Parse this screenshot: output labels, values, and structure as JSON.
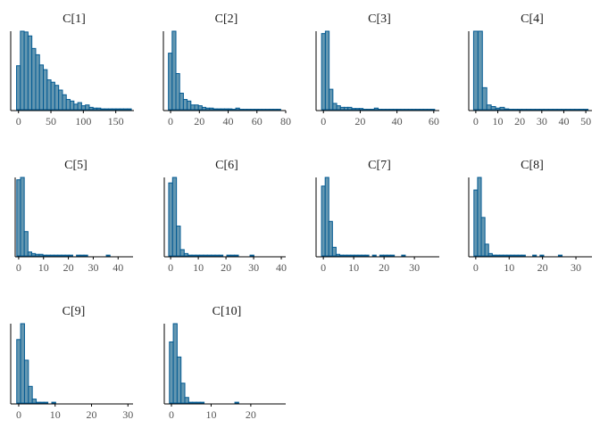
{
  "chart_data": [
    {
      "type": "bar",
      "title": "C[1]",
      "xlim": [
        -12,
        178
      ],
      "ticks": [
        0,
        50,
        100,
        150
      ],
      "bin_start": -3,
      "bin_width": 5.9,
      "values": [
        56,
        100,
        99,
        94,
        78,
        70,
        57,
        51,
        38,
        35,
        31,
        25,
        19,
        13,
        11,
        7,
        9,
        5,
        6,
        3,
        2,
        2,
        1,
        1,
        1,
        1,
        1,
        1,
        1,
        1
      ]
    },
    {
      "type": "bar",
      "title": "C[2]",
      "xlim": [
        -5,
        80
      ],
      "ticks": [
        0,
        20,
        40,
        60,
        80
      ],
      "bin_start": -1.5,
      "bin_width": 2.6,
      "values": [
        72,
        100,
        46,
        21,
        13,
        11,
        6,
        6,
        5,
        3,
        2,
        2,
        1,
        1,
        1,
        1,
        1,
        0.5,
        2,
        0.5,
        0.5,
        0.5,
        0.5,
        0.5,
        0.5,
        0.5,
        0.5,
        0.5,
        0.5,
        0.5
      ]
    },
    {
      "type": "bar",
      "title": "C[3]",
      "xlim": [
        -4,
        63
      ],
      "ticks": [
        0,
        20,
        40,
        60
      ],
      "bin_start": -1,
      "bin_width": 2.05,
      "values": [
        97,
        100,
        26,
        8,
        5,
        3,
        3,
        3,
        1.5,
        1.5,
        1.5,
        0.5,
        0.5,
        0.5,
        2,
        0.5,
        0.5,
        0.5,
        0.5,
        0.5,
        0.5,
        0.5,
        0.5,
        0.5,
        0.5,
        0.5,
        0.5,
        0.5,
        0.5,
        0.5
      ]
    },
    {
      "type": "bar",
      "title": "C[4]",
      "xlim": [
        -3.2,
        52.8
      ],
      "ticks": [
        0,
        10,
        20,
        30,
        40,
        50
      ],
      "bin_start": -1,
      "bin_width": 2,
      "values": [
        100,
        100,
        28,
        6,
        4,
        2,
        3,
        1,
        0.5,
        0.5,
        0.5,
        0.5,
        0.5,
        0.5,
        0.5,
        0.5,
        0.5,
        0.5,
        0.5,
        0.5,
        0.5,
        0.5,
        0.5,
        0.5,
        0.5,
        0.5
      ]
    },
    {
      "type": "bar",
      "title": "C[5]",
      "xlim": [
        -1.4,
        46
      ],
      "ticks": [
        0,
        10,
        20,
        30,
        40
      ],
      "bin_start": -0.75,
      "bin_width": 1.5,
      "values": [
        97,
        100,
        31,
        5,
        3,
        2,
        2,
        1,
        1,
        1,
        1,
        1,
        1,
        1,
        1,
        0,
        1,
        1,
        1,
        0,
        0,
        0,
        0,
        0,
        1,
        0
      ]
    },
    {
      "type": "bar",
      "title": "C[6]",
      "xlim": [
        -2.3,
        41.6
      ],
      "ticks": [
        0,
        10,
        20,
        30,
        40
      ],
      "bin_start": -0.7,
      "bin_width": 1.4,
      "values": [
        93,
        100,
        38,
        8,
        3,
        1,
        1,
        1,
        1,
        1,
        1,
        1,
        1,
        1,
        0,
        1,
        1,
        1,
        0,
        0,
        0,
        1,
        0
      ]
    },
    {
      "type": "bar",
      "title": "C[7]",
      "xlim": [
        -2.4,
        38.2
      ],
      "ticks": [
        0,
        10,
        20,
        30
      ],
      "bin_start": -0.6,
      "bin_width": 1.2,
      "values": [
        89,
        100,
        44,
        11,
        2,
        1,
        1,
        1,
        1,
        1,
        1,
        1,
        1,
        0,
        1,
        0,
        1,
        1,
        1,
        1,
        0,
        0,
        1
      ]
    },
    {
      "type": "bar",
      "title": "C[8]",
      "xlim": [
        -2.1,
        34.8
      ],
      "ticks": [
        0,
        10,
        20,
        30
      ],
      "bin_start": -0.55,
      "bin_width": 1.1,
      "values": [
        84,
        100,
        49,
        15,
        3,
        1,
        1,
        1,
        1,
        1,
        1,
        1,
        1,
        1,
        0,
        0,
        1,
        0,
        1,
        0,
        0,
        0,
        0,
        1
      ]
    },
    {
      "type": "bar",
      "title": "C[9]",
      "xlim": [
        -2.2,
        31.4
      ],
      "ticks": [
        0,
        10,
        20,
        30
      ],
      "bin_start": -0.55,
      "bin_width": 1.07,
      "values": [
        80,
        100,
        54,
        21,
        5,
        1,
        1,
        1,
        0,
        1
      ]
    },
    {
      "type": "bar",
      "title": "C[10]",
      "xlim": [
        -1.8,
        28.8
      ],
      "ticks": [
        0,
        10,
        20
      ],
      "bin_start": -0.5,
      "bin_width": 0.97,
      "values": [
        77,
        100,
        58,
        25,
        7,
        1,
        1,
        1,
        1,
        0,
        0,
        0,
        0,
        0,
        0,
        0,
        0,
        1
      ]
    }
  ]
}
